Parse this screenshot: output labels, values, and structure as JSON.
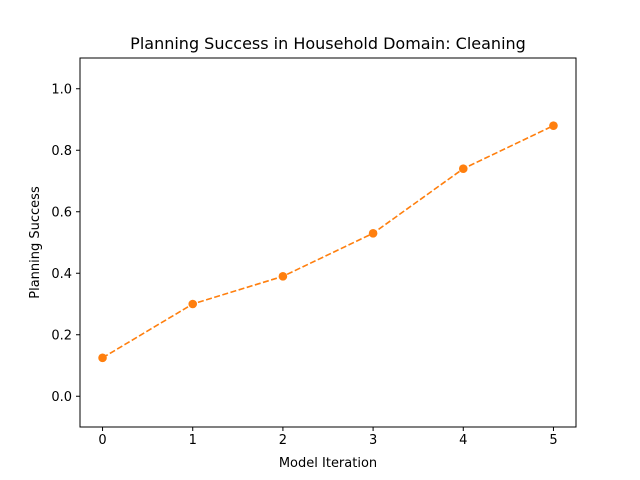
{
  "chart_data": {
    "type": "line",
    "title": "Planning Success in Household Domain: Cleaning",
    "xlabel": "Model Iteration",
    "ylabel": "Planning Success",
    "x": [
      0,
      1,
      2,
      3,
      4,
      5
    ],
    "series": [
      {
        "values": [
          0.125,
          0.3,
          0.39,
          0.53,
          0.74,
          0.88
        ],
        "color": "#ff7f0e",
        "line_style": "dashed",
        "marker": "circle"
      }
    ],
    "xlim": [
      -0.25,
      5.25
    ],
    "ylim": [
      -0.1,
      1.1
    ],
    "x_ticks": [
      "0",
      "1",
      "2",
      "3",
      "4",
      "5"
    ],
    "y_ticks": [
      "0.0",
      "0.2",
      "0.4",
      "0.6",
      "0.8",
      "1.0"
    ],
    "grid": false,
    "legend": "none"
  }
}
